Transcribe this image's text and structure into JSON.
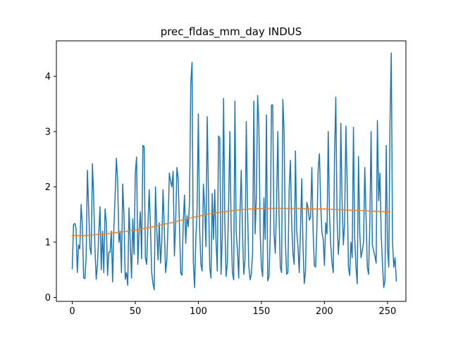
{
  "chart_data": {
    "type": "line",
    "title": "prec_fldas_mm_day INDUS",
    "xlabel": "",
    "ylabel": "",
    "xlim": [
      -12.6,
      264.6
    ],
    "ylim": [
      -0.07,
      4.64
    ],
    "xticks": [
      0,
      50,
      100,
      150,
      200,
      250
    ],
    "yticks": [
      0,
      1,
      2,
      3,
      4
    ],
    "grid": false,
    "series": [
      {
        "name": "",
        "color": "#1f77b4",
        "x_start": 0,
        "values": [
          0.52,
          1.32,
          1.34,
          1.25,
          0.45,
          0.95,
          0.88,
          1.68,
          1.3,
          0.36,
          0.34,
          0.72,
          2.3,
          1.6,
          0.9,
          0.78,
          2.42,
          1.8,
          0.88,
          0.33,
          0.6,
          1.15,
          1.64,
          0.5,
          1.2,
          0.45,
          1.6,
          1.35,
          0.4,
          0.82,
          0.82,
          1.2,
          0.28,
          1.25,
          1.85,
          2.52,
          2.1,
          1.0,
          1.2,
          0.45,
          2.05,
          1.5,
          0.33,
          0.45,
          0.22,
          1.62,
          1.0,
          0.35,
          1.42,
          0.78,
          2.25,
          2.54,
          0.6,
          1.2,
          1.55,
          0.7,
          2.75,
          2.73,
          0.72,
          0.6,
          1.3,
          1.95,
          1.3,
          0.45,
          0.25,
          0.14,
          2.0,
          1.25,
          0.68,
          1.35,
          0.62,
          1.0,
          1.95,
          1.25,
          0.45,
          0.68,
          1.35,
          2.25,
          2.1,
          2.0,
          2.28,
          0.75,
          1.35,
          2.35,
          2.15,
          1.3,
          0.45,
          0.4,
          1.35,
          1.85,
          0.98,
          1.48,
          1.28,
          1.72,
          3.88,
          4.25,
          0.65,
          0.18,
          1.05,
          1.6,
          3.32,
          1.25,
          0.6,
          0.48,
          2.05,
          1.65,
          0.92,
          3.27,
          1.92,
          0.55,
          0.35,
          1.88,
          1.05,
          1.95,
          1.02,
          0.48,
          2.92,
          2.88,
          0.42,
          1.1,
          3.6,
          1.35,
          0.38,
          0.62,
          1.7,
          3.0,
          1.25,
          0.45,
          0.32,
          3.55,
          1.18,
          0.85,
          0.35,
          1.5,
          2.3,
          1.2,
          0.42,
          0.68,
          3.18,
          1.6,
          0.58,
          0.32,
          0.42,
          0.8,
          3.55,
          1.15,
          1.82,
          3.65,
          3.12,
          1.2,
          0.55,
          0.38,
          1.8,
          1.05,
          3.3,
          0.3,
          0.38,
          1.1,
          3.48,
          3.48,
          1.15,
          0.8,
          1.62,
          3.0,
          1.5,
          0.55,
          0.45,
          3.58,
          3.0,
          1.05,
          0.42,
          0.45,
          1.95,
          2.48,
          1.35,
          0.8,
          0.6,
          2.65,
          1.2,
          0.92,
          0.45,
          1.22,
          2.15,
          0.92,
          0.25,
          0.48,
          1.72,
          1.62,
          1.4,
          1.45,
          2.35,
          1.2,
          0.58,
          0.55,
          1.25,
          2.32,
          2.6,
          1.7,
          1.18,
          1.05,
          0.58,
          1.35,
          1.15,
          3.0,
          1.5,
          0.95,
          0.62,
          0.45,
          2.55,
          3.62,
          1.45,
          0.78,
          1.12,
          3.15,
          1.72,
          0.95,
          1.35,
          3.1,
          2.08,
          0.55,
          0.4,
          1.0,
          0.72,
          3.08,
          1.08,
          0.55,
          0.25,
          2.55,
          1.18,
          0.72,
          0.85,
          1.0,
          2.35,
          1.45,
          0.55,
          0.42,
          1.35,
          3.0,
          0.95,
          0.85,
          0.75,
          0.62,
          3.2,
          1.75,
          2.25,
          1.15,
          0.62,
          0.18,
          0.3,
          2.75,
          0.9,
          0.55,
          3.2,
          4.42,
          1.0,
          0.55,
          0.72,
          0.3
        ]
      },
      {
        "name": "",
        "color": "#ff7f0e",
        "x": [
          0,
          10,
          20,
          30,
          40,
          50,
          60,
          70,
          80,
          90,
          100,
          110,
          120,
          130,
          140,
          150,
          160,
          170,
          180,
          190,
          200,
          210,
          220,
          230,
          240,
          252
        ],
        "values": [
          1.12,
          1.12,
          1.14,
          1.16,
          1.19,
          1.22,
          1.26,
          1.31,
          1.36,
          1.42,
          1.47,
          1.52,
          1.55,
          1.58,
          1.6,
          1.61,
          1.61,
          1.61,
          1.61,
          1.6,
          1.6,
          1.59,
          1.58,
          1.57,
          1.56,
          1.55
        ]
      }
    ]
  }
}
